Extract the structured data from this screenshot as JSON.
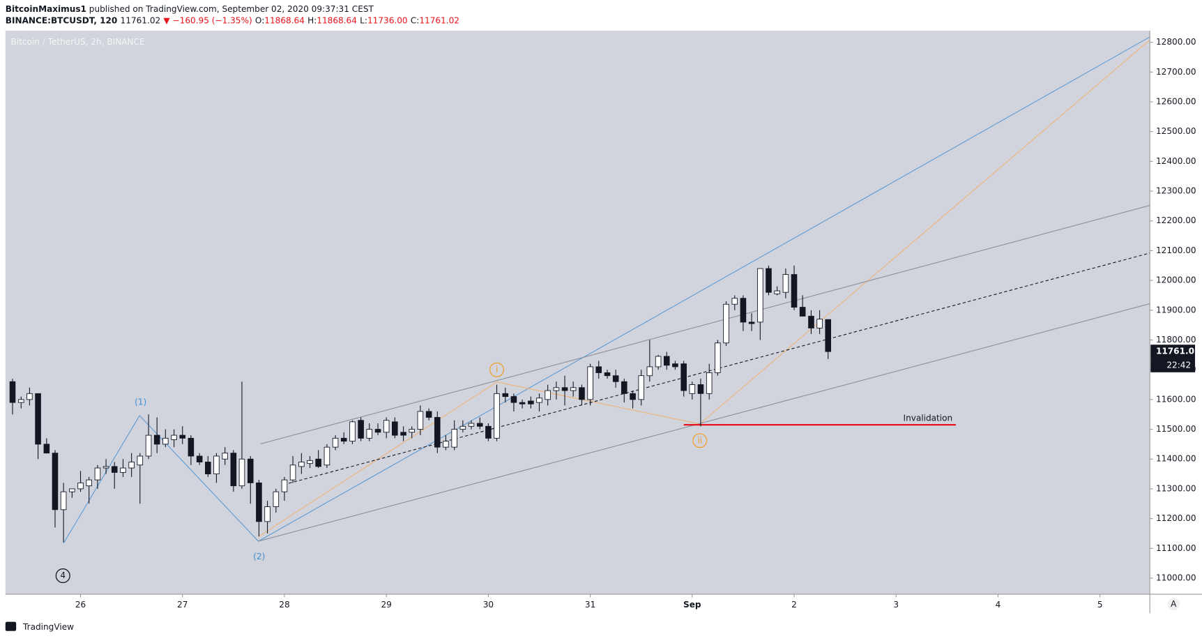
{
  "header": {
    "author": "BitcoinMaximus1",
    "published": "published on TradingView.com, September 02, 2020 09:37:31 CEST",
    "symbol": "BINANCE:BTCUSDT, 120",
    "last": "11761.02",
    "change": "▼ −160.95 (−1.35%)",
    "ohlc": [
      {
        "label": "O:",
        "value": "11868.64"
      },
      {
        "label": "H:",
        "value": "11868.64"
      },
      {
        "label": "L:",
        "value": "11736.00"
      },
      {
        "label": "C:",
        "value": "11761.02"
      }
    ]
  },
  "chart_data": {
    "type": "candlestick",
    "title": "Bitcoin / TetherUS, 2h, BINANCE",
    "x": [
      25.333,
      25.417,
      25.5,
      25.583,
      25.667,
      25.75,
      25.833,
      25.917,
      26,
      26.083,
      26.167,
      26.25,
      26.333,
      26.417,
      26.5,
      26.583,
      26.667,
      26.75,
      26.833,
      26.917,
      27,
      27.083,
      27.167,
      27.25,
      27.333,
      27.417,
      27.5,
      27.583,
      27.667,
      27.75,
      27.833,
      27.917,
      28,
      28.083,
      28.167,
      28.25,
      28.333,
      28.417,
      28.5,
      28.583,
      28.667,
      28.75,
      28.833,
      28.917,
      29,
      29.083,
      29.167,
      29.25,
      29.333,
      29.417,
      29.5,
      29.583,
      29.667,
      29.75,
      29.833,
      29.917,
      30,
      30.083,
      30.167,
      30.25,
      30.333,
      30.417,
      30.5,
      30.583,
      30.667,
      30.75,
      30.833,
      30.917,
      31,
      31.083,
      31.167,
      31.25,
      31.333,
      31.417,
      31.5,
      31.583,
      31.667,
      31.75,
      31.833,
      31.917,
      32,
      32.083,
      32.167,
      32.25,
      32.333,
      32.417,
      32.5,
      32.583,
      32.667,
      32.75,
      32.833,
      32.917,
      33,
      33.083,
      33.167,
      33.25,
      33.333
    ],
    "open": [
      11660,
      11590,
      11600,
      11620,
      11450,
      11420,
      11230,
      11290,
      11300,
      11310,
      11330,
      11370,
      11375,
      11355,
      11370,
      11380,
      11410,
      11480,
      11450,
      11465,
      11480,
      11470,
      11410,
      11390,
      11350,
      11400,
      11420,
      11310,
      11400,
      11320,
      11190,
      11240,
      11290,
      11330,
      11375,
      11385,
      11400,
      11380,
      11440,
      11470,
      11460,
      11530,
      11470,
      11500,
      11490,
      11525,
      11490,
      11490,
      11500,
      11560,
      11540,
      11440,
      11440,
      11500,
      11510,
      11520,
      11510,
      11470,
      11620,
      11610,
      11590,
      11595,
      11590,
      11600,
      11630,
      11640,
      11630,
      11640,
      11600,
      11710,
      11690,
      11680,
      11660,
      11620,
      11600,
      11680,
      11710,
      11745,
      11720,
      11720,
      11620,
      11650,
      11620,
      11690,
      11790,
      11920,
      11940,
      11860,
      11860,
      12040,
      11955,
      11960,
      12020,
      11910,
      11880,
      11840,
      11868.64
    ],
    "high": [
      11670,
      11610,
      11640,
      11620,
      11470,
      11430,
      11320,
      11300,
      11360,
      11340,
      11380,
      11400,
      11390,
      11400,
      11420,
      11420,
      11550,
      11540,
      11500,
      11500,
      11510,
      11480,
      11420,
      11410,
      11420,
      11440,
      11430,
      11660,
      11410,
      11330,
      11260,
      11300,
      11340,
      11410,
      11420,
      11410,
      11430,
      11450,
      11480,
      11490,
      11530,
      11540,
      11520,
      11520,
      11540,
      11540,
      11510,
      11510,
      11580,
      11570,
      11560,
      11480,
      11530,
      11530,
      11530,
      11540,
      11520,
      11650,
      11640,
      11620,
      11600,
      11610,
      11620,
      11650,
      11660,
      11680,
      11660,
      11650,
      11720,
      11730,
      11700,
      11700,
      11670,
      11630,
      11700,
      11800,
      11750,
      11760,
      11730,
      11730,
      11660,
      11670,
      11720,
      11800,
      11930,
      11950,
      11950,
      11890,
      12040,
      12050,
      11980,
      12040,
      12050,
      11950,
      11900,
      11900,
      11868.64
    ],
    "low": [
      11550,
      11570,
      11580,
      11400,
      11420,
      11170,
      11120,
      11270,
      11290,
      11250,
      11300,
      11350,
      11300,
      11340,
      11340,
      11250,
      11400,
      11420,
      11440,
      11440,
      11450,
      11380,
      11380,
      11340,
      11320,
      11380,
      11290,
      11300,
      11250,
      11140,
      11150,
      11220,
      11260,
      11320,
      11350,
      11370,
      11370,
      11370,
      11430,
      11450,
      11450,
      11460,
      11460,
      11480,
      11470,
      11470,
      11460,
      11470,
      11480,
      11530,
      11420,
      11430,
      11430,
      11490,
      11500,
      11500,
      11460,
      11460,
      11590,
      11560,
      11570,
      11570,
      11560,
      11580,
      11600,
      11580,
      11610,
      11580,
      11580,
      11670,
      11670,
      11640,
      11590,
      11570,
      11580,
      11660,
      11700,
      11700,
      11700,
      11610,
      11600,
      11510,
      11600,
      11680,
      11780,
      11900,
      11830,
      11830,
      11800,
      11950,
      11950,
      11940,
      11900,
      11880,
      11820,
      11820,
      11736
    ],
    "close": [
      11590,
      11600,
      11620,
      11450,
      11420,
      11230,
      11290,
      11300,
      11320,
      11330,
      11370,
      11375,
      11355,
      11370,
      11390,
      11410,
      11480,
      11450,
      11470,
      11480,
      11470,
      11410,
      11390,
      11350,
      11410,
      11420,
      11310,
      11400,
      11320,
      11190,
      11240,
      11290,
      11330,
      11380,
      11390,
      11395,
      11375,
      11440,
      11470,
      11460,
      11525,
      11470,
      11500,
      11490,
      11530,
      11480,
      11480,
      11500,
      11560,
      11540,
      11440,
      11460,
      11500,
      11510,
      11520,
      11510,
      11470,
      11620,
      11610,
      11590,
      11585,
      11585,
      11605,
      11630,
      11640,
      11630,
      11640,
      11600,
      11710,
      11690,
      11680,
      11660,
      11620,
      11600,
      11680,
      11710,
      11745,
      11715,
      11710,
      11630,
      11650,
      11620,
      11690,
      11790,
      11920,
      11940,
      11860,
      11855,
      12040,
      11960,
      11965,
      12020,
      11910,
      11880,
      11840,
      11870,
      11761.02
    ],
    "up_color": "#ffffff",
    "down_color": "#131722",
    "xlim": [
      25.263,
      36.489
    ],
    "xticks": [
      26,
      27,
      28,
      29,
      30,
      31,
      {
        "value": 32,
        "label": "Sep"
      },
      {
        "value": 33,
        "label": "2"
      },
      {
        "value": 34,
        "label": "3"
      },
      {
        "value": 35,
        "label": "4"
      },
      {
        "value": 36,
        "label": "5"
      }
    ],
    "ylim": [
      10946,
      12839
    ],
    "yticks": [
      {
        "value": 11000,
        "label": "11000.00"
      },
      {
        "value": 11100,
        "label": "11100.00"
      },
      {
        "value": 11200,
        "label": "11200.00"
      },
      {
        "value": 11300,
        "label": "11300.00"
      },
      {
        "value": 11400,
        "label": "11400.00"
      },
      {
        "value": 11500,
        "label": "11500.00"
      },
      {
        "value": 11600,
        "label": "11600.00"
      },
      {
        "value": 11700,
        "label": "11700.00"
      },
      {
        "value": 11800,
        "label": "11800.00"
      },
      {
        "value": 11900,
        "label": "11900.00"
      },
      {
        "value": 12000,
        "label": "12000.00"
      },
      {
        "value": 12100,
        "label": "12100.00"
      },
      {
        "value": 12200,
        "label": "12200.00"
      },
      {
        "value": 12300,
        "label": "12300.00"
      },
      {
        "value": 12400,
        "label": "12400.00"
      },
      {
        "value": 12500,
        "label": "12500.00"
      },
      {
        "value": 12600,
        "label": "12600.00"
      },
      {
        "value": 12700,
        "label": "12700.00"
      },
      {
        "value": 12800,
        "label": "12800.00"
      }
    ],
    "last_price": 11761.02,
    "countdown": "22:42",
    "lines": [
      {
        "color": "#5b9bd5",
        "x": [
          25.835,
          26.579,
          27.744,
          36.489
        ],
        "y": [
          11118,
          11546,
          11124,
          12818
        ]
      },
      {
        "color": "#f0b27a",
        "x": [
          27.744,
          30.083,
          32.075,
          36.489
        ],
        "y": [
          11139,
          11659,
          11518,
          12808
        ]
      },
      {
        "color": "#8a8f99",
        "x": [
          27.767,
          36.489
        ],
        "y": [
          11451,
          12252
        ]
      },
      {
        "color": "#8a8f99",
        "x": [
          27.744,
          36.489
        ],
        "y": [
          11124,
          11922
        ]
      },
      {
        "color": "#131722",
        "dashed": true,
        "x": [
          27.992,
          36.489
        ],
        "y": [
          11314,
          12092
        ]
      },
      {
        "color": "#e8141c",
        "width": 2,
        "x": [
          31.917,
          34.586
        ],
        "y": [
          11515,
          11515
        ]
      }
    ],
    "labels": [
      {
        "text": "(1)",
        "color": "#3d8fd6",
        "x": 26.589,
        "y": 11590
      },
      {
        "text": "(2)",
        "color": "#3d8fd6",
        "x": 27.752,
        "y": 11072
      },
      {
        "text": "i",
        "color": "#f0a030",
        "circled": true,
        "x": 30.083,
        "y": 11700
      },
      {
        "text": "ii",
        "color": "#f0a030",
        "circled": true,
        "x": 32.075,
        "y": 11462
      },
      {
        "text": "4",
        "color": "#131722",
        "circled": true,
        "x": 25.827,
        "y": 11008
      },
      {
        "text": "Invalidation",
        "color": "#131722",
        "x": 34.312,
        "y": 11537
      }
    ]
  },
  "footer": {
    "brand": "TradingView",
    "button": "A"
  }
}
